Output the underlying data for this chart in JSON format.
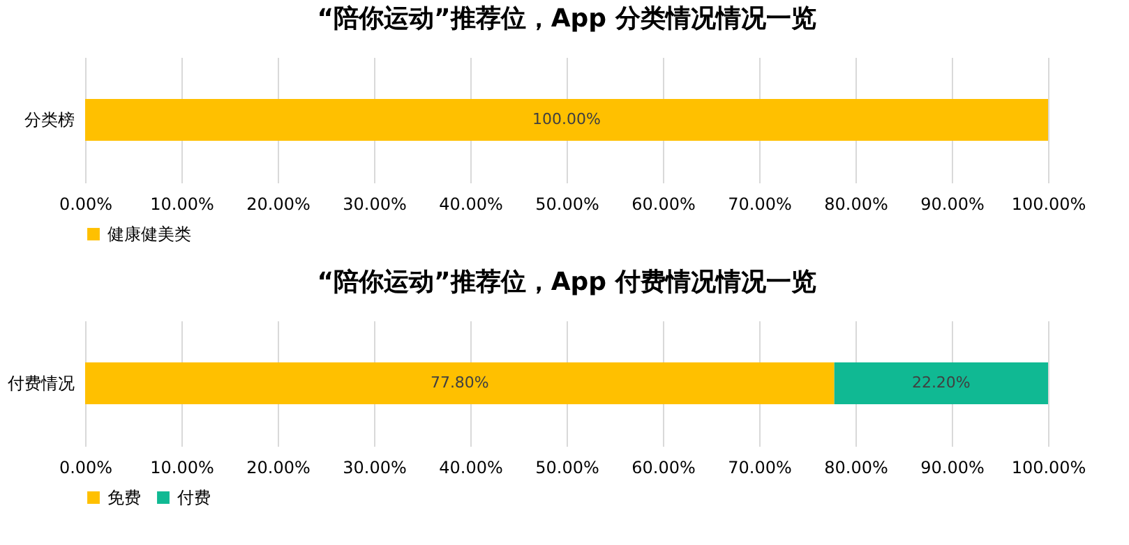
{
  "chart_data": [
    {
      "type": "bar",
      "title": "“陪你运动”推荐位，App 分类情况情况一览",
      "orientation": "horizontal",
      "stacked": true,
      "categories": [
        "分类榜"
      ],
      "series": [
        {
          "name": "健康健美类",
          "color": "#ffc000",
          "values": [
            100
          ],
          "value_labels": [
            "100.00%"
          ]
        }
      ],
      "xlim": [
        0,
        100
      ],
      "xticks": [
        {
          "value": 0,
          "label": "0.00%"
        },
        {
          "value": 10,
          "label": "10.00%"
        },
        {
          "value": 20,
          "label": "20.00%"
        },
        {
          "value": 30,
          "label": "30.00%"
        },
        {
          "value": 40,
          "label": "40.00%"
        },
        {
          "value": 50,
          "label": "50.00%"
        },
        {
          "value": 60,
          "label": "60.00%"
        },
        {
          "value": 70,
          "label": "70.00%"
        },
        {
          "value": 80,
          "label": "80.00%"
        },
        {
          "value": 90,
          "label": "90.00%"
        },
        {
          "value": 100,
          "label": "100.00%"
        }
      ],
      "grid": "x",
      "legend": "bottom"
    },
    {
      "type": "bar",
      "title": "“陪你运动”推荐位，App 付费情况情况一览",
      "orientation": "horizontal",
      "stacked": true,
      "categories": [
        "付费情况"
      ],
      "series": [
        {
          "name": "免费",
          "color": "#ffc000",
          "values": [
            77.8
          ],
          "value_labels": [
            "77.80%"
          ]
        },
        {
          "name": "付费",
          "color": "#10b993",
          "values": [
            22.2
          ],
          "value_labels": [
            "22.20%"
          ]
        }
      ],
      "xlim": [
        0,
        100
      ],
      "xticks": [
        {
          "value": 0,
          "label": "0.00%"
        },
        {
          "value": 10,
          "label": "10.00%"
        },
        {
          "value": 20,
          "label": "20.00%"
        },
        {
          "value": 30,
          "label": "30.00%"
        },
        {
          "value": 40,
          "label": "40.00%"
        },
        {
          "value": 50,
          "label": "50.00%"
        },
        {
          "value": 60,
          "label": "60.00%"
        },
        {
          "value": 70,
          "label": "70.00%"
        },
        {
          "value": 80,
          "label": "80.00%"
        },
        {
          "value": 90,
          "label": "90.00%"
        },
        {
          "value": 100,
          "label": "100.00%"
        }
      ],
      "grid": "x",
      "legend": "bottom"
    }
  ]
}
